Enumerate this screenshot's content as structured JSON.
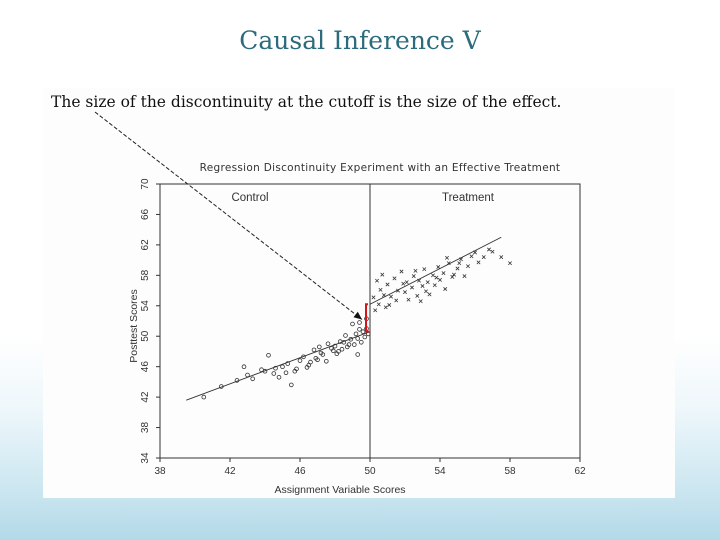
{
  "slide": {
    "title": "Causal Inference V"
  },
  "figure": {
    "caption": "The size of the discontinuity at the cutoff is the size of the effect.",
    "accent_color": "#d6151b",
    "ink_color": "#333333"
  },
  "chart_data": {
    "type": "scatter",
    "title": "Regression Discontinuity Experiment with an Effective Treatment",
    "xlabel": "Assignment Variable Scores",
    "ylabel": "Posttest Scores",
    "xlim": [
      38,
      62
    ],
    "ylim": [
      34,
      70
    ],
    "xticks": [
      "38",
      "42",
      "46",
      "50",
      "54",
      "58",
      "62"
    ],
    "yticks": [
      "34",
      "38",
      "42",
      "46",
      "50",
      "54",
      "58",
      "62",
      "66",
      "70"
    ],
    "cutoff": 50,
    "regions": [
      "Control",
      "Treatment"
    ],
    "series": [
      {
        "marker": "circle",
        "fit_line": {
          "x": [
            39.5,
            50
          ],
          "y": [
            41.6,
            50.6
          ]
        },
        "points": [
          [
            40.5,
            42.0
          ],
          [
            41.5,
            43.4
          ],
          [
            42.4,
            44.2
          ],
          [
            42.8,
            46.0
          ],
          [
            43.3,
            44.4
          ],
          [
            43.8,
            45.6
          ],
          [
            44.2,
            47.5
          ],
          [
            44.5,
            45.1
          ],
          [
            44.8,
            44.6
          ],
          [
            45.0,
            46.0
          ],
          [
            45.2,
            45.2
          ],
          [
            45.3,
            46.4
          ],
          [
            45.5,
            43.6
          ],
          [
            45.8,
            45.7
          ],
          [
            46.0,
            46.8
          ],
          [
            46.2,
            47.3
          ],
          [
            46.4,
            45.9
          ],
          [
            46.6,
            46.6
          ],
          [
            46.8,
            48.2
          ],
          [
            47.0,
            46.9
          ],
          [
            47.1,
            48.6
          ],
          [
            47.3,
            47.6
          ],
          [
            47.5,
            46.7
          ],
          [
            47.6,
            49.0
          ],
          [
            47.8,
            48.4
          ],
          [
            48.0,
            48.7
          ],
          [
            48.1,
            47.7
          ],
          [
            48.3,
            49.3
          ],
          [
            48.4,
            48.3
          ],
          [
            48.6,
            50.1
          ],
          [
            48.7,
            48.6
          ],
          [
            48.9,
            49.6
          ],
          [
            49.0,
            51.6
          ],
          [
            49.1,
            48.9
          ],
          [
            49.2,
            50.3
          ],
          [
            49.3,
            49.7
          ],
          [
            49.4,
            50.9
          ],
          [
            49.5,
            49.2
          ],
          [
            49.6,
            50.6
          ],
          [
            49.7,
            49.9
          ],
          [
            49.8,
            52.3
          ],
          [
            49.9,
            50.3
          ],
          [
            49.3,
            47.6
          ],
          [
            48.8,
            48.9
          ],
          [
            47.9,
            48.1
          ],
          [
            46.9,
            47.1
          ],
          [
            44.0,
            45.4
          ],
          [
            43.0,
            44.9
          ],
          [
            49.4,
            51.8
          ],
          [
            48.5,
            49.2
          ],
          [
            47.2,
            47.8
          ],
          [
            46.5,
            46.2
          ],
          [
            45.7,
            45.4
          ],
          [
            44.6,
            45.8
          ],
          [
            49.8,
            51.0
          ],
          [
            48.2,
            48.0
          ]
        ]
      },
      {
        "marker": "x",
        "fit_line": {
          "x": [
            50,
            57.5
          ],
          "y": [
            54.2,
            63.0
          ]
        },
        "points": [
          [
            50.2,
            55.1
          ],
          [
            50.4,
            57.3
          ],
          [
            50.5,
            54.2
          ],
          [
            50.6,
            56.1
          ],
          [
            50.8,
            55.4
          ],
          [
            50.9,
            53.8
          ],
          [
            51.0,
            56.8
          ],
          [
            51.2,
            55.2
          ],
          [
            51.4,
            57.6
          ],
          [
            51.5,
            54.7
          ],
          [
            51.6,
            56.0
          ],
          [
            51.8,
            58.5
          ],
          [
            52.0,
            55.8
          ],
          [
            52.1,
            57.1
          ],
          [
            52.2,
            54.8
          ],
          [
            52.4,
            56.4
          ],
          [
            52.5,
            57.9
          ],
          [
            52.7,
            55.3
          ],
          [
            52.8,
            57.3
          ],
          [
            53.0,
            56.6
          ],
          [
            53.1,
            58.8
          ],
          [
            53.3,
            57.1
          ],
          [
            53.4,
            55.5
          ],
          [
            53.6,
            58.0
          ],
          [
            53.7,
            56.7
          ],
          [
            53.9,
            59.1
          ],
          [
            54.0,
            57.4
          ],
          [
            54.2,
            58.3
          ],
          [
            54.3,
            56.2
          ],
          [
            54.5,
            59.6
          ],
          [
            54.7,
            57.8
          ],
          [
            55.0,
            58.9
          ],
          [
            55.2,
            60.1
          ],
          [
            55.4,
            57.9
          ],
          [
            55.6,
            59.2
          ],
          [
            55.8,
            60.5
          ],
          [
            56.0,
            61.0
          ],
          [
            56.2,
            59.7
          ],
          [
            56.5,
            60.4
          ],
          [
            57.0,
            61.1
          ],
          [
            57.5,
            60.4
          ],
          [
            58.0,
            59.6
          ],
          [
            54.8,
            58.1
          ],
          [
            53.2,
            55.9
          ],
          [
            52.6,
            58.6
          ],
          [
            51.1,
            54.1
          ],
          [
            50.3,
            53.4
          ],
          [
            51.9,
            56.9
          ],
          [
            50.7,
            58.1
          ],
          [
            52.9,
            54.6
          ],
          [
            53.8,
            57.7
          ],
          [
            55.1,
            59.6
          ],
          [
            56.8,
            61.4
          ],
          [
            54.4,
            60.3
          ]
        ]
      }
    ],
    "discontinuity_at": 50,
    "discontinuity_y": [
      50.6,
      54.2
    ]
  }
}
